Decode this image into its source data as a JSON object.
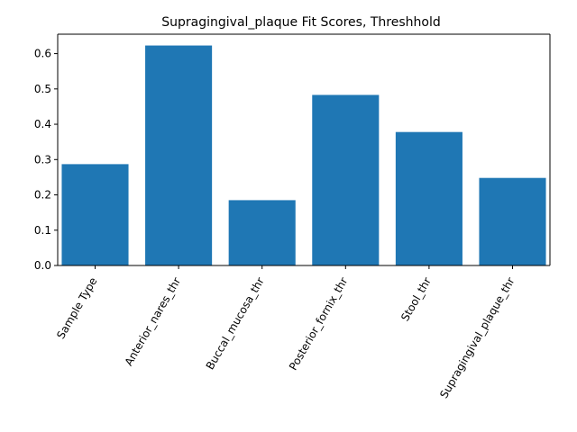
{
  "chart_data": {
    "type": "bar",
    "title": "Supragingival_plaque Fit Scores, Threshhold",
    "xlabel": "",
    "ylabel": "",
    "categories": [
      "Sample Type",
      "Anterior_nares_thr",
      "Buccal_mucosa_thr",
      "Posterior_fornix_thr",
      "Stool_thr",
      "Supragingival_plaque_thr"
    ],
    "values": [
      0.287,
      0.623,
      0.185,
      0.483,
      0.378,
      0.248
    ],
    "ylim": [
      0,
      0.655
    ],
    "yticks": [
      0.0,
      0.1,
      0.2,
      0.3,
      0.4,
      0.5,
      0.6
    ],
    "ytick_labels": [
      "0.0",
      "0.1",
      "0.2",
      "0.3",
      "0.4",
      "0.5",
      "0.6"
    ],
    "bar_color": "#1f77b4",
    "grid": false,
    "legend": "none"
  }
}
